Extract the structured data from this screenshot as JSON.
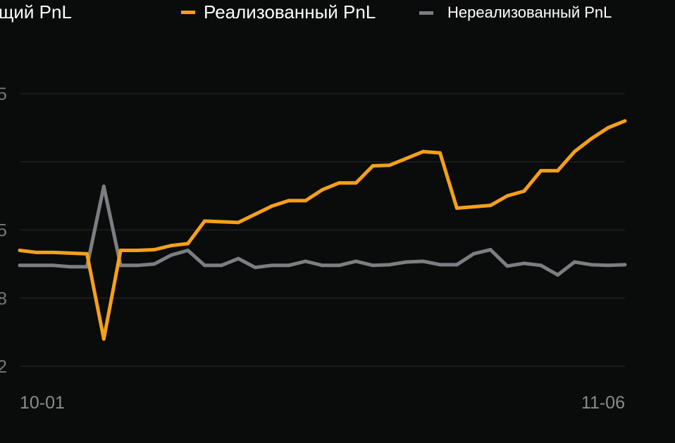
{
  "legend": {
    "items": [
      {
        "label": "щий PnL",
        "color": null
      },
      {
        "label": "Реализованный PnL",
        "color": "#f5a01a"
      },
      {
        "label": "Нереализованный PnL",
        "color": "#7d7e82"
      }
    ]
  },
  "chart_data": {
    "type": "line",
    "title": "",
    "xlabel": "",
    "ylabel": "",
    "grid": true,
    "legend_position": "top",
    "ytick_labels_visible": [
      "5",
      "",
      "5",
      "8",
      "2"
    ],
    "ylim": [
      0,
      4
    ],
    "xtick_labels": [
      "10-01",
      "11-06"
    ],
    "x": [
      "10-01",
      "10-02",
      "10-03",
      "10-04",
      "10-05",
      "10-06",
      "10-07",
      "10-08",
      "10-09",
      "10-10",
      "10-11",
      "10-12",
      "10-13",
      "10-14",
      "10-15",
      "10-16",
      "10-17",
      "10-18",
      "10-19",
      "10-20",
      "10-21",
      "10-22",
      "10-23",
      "10-24",
      "10-25",
      "10-26",
      "10-27",
      "10-28",
      "10-29",
      "10-30",
      "10-31",
      "11-01",
      "11-02",
      "11-03",
      "11-04",
      "11-05",
      "11-06"
    ],
    "series": [
      {
        "name": "Реализованный PnL",
        "color": "#f5a01a",
        "values": [
          1.7,
          1.67,
          1.67,
          1.66,
          1.65,
          0.4,
          1.7,
          1.7,
          1.71,
          1.77,
          1.8,
          2.13,
          2.12,
          2.11,
          2.23,
          2.35,
          2.43,
          2.43,
          2.59,
          2.69,
          2.69,
          2.94,
          2.95,
          3.05,
          3.15,
          3.13,
          2.32,
          2.34,
          2.36,
          2.5,
          2.57,
          2.87,
          2.87,
          3.15,
          3.34,
          3.5,
          3.6
        ]
      },
      {
        "name": "Нереализованный PnL",
        "color": "#7d7e82",
        "values": [
          1.48,
          1.48,
          1.48,
          1.46,
          1.46,
          2.64,
          1.48,
          1.48,
          1.5,
          1.63,
          1.7,
          1.48,
          1.48,
          1.58,
          1.45,
          1.48,
          1.48,
          1.54,
          1.48,
          1.48,
          1.54,
          1.48,
          1.49,
          1.53,
          1.54,
          1.49,
          1.49,
          1.65,
          1.71,
          1.47,
          1.51,
          1.48,
          1.34,
          1.53,
          1.49,
          1.48,
          1.49
        ]
      }
    ]
  }
}
